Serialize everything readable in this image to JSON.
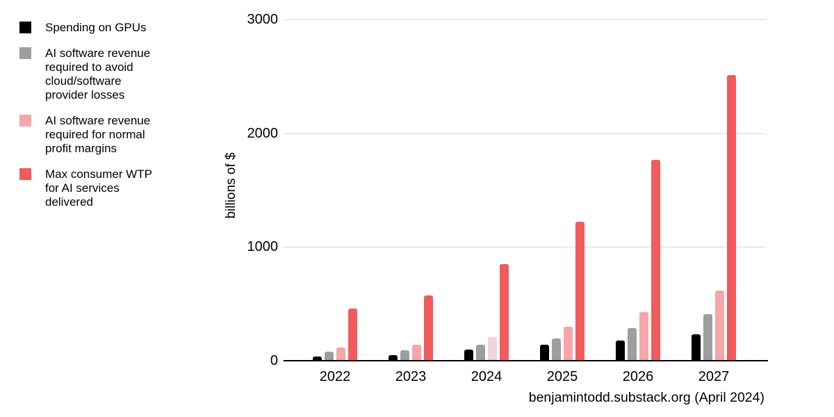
{
  "legend": {
    "items": [
      {
        "label": "Spending on GPUs",
        "color": "#000000"
      },
      {
        "label": "AI software revenue\nrequired to avoid\ncloud/software\nprovider losses",
        "color": "#9e9e9e"
      },
      {
        "label": "AI software revenue\nrequired for normal\nprofit margins",
        "color": "#f6a6a8"
      },
      {
        "label": "Max consumer WTP\nfor AI services\ndelivered",
        "color": "#f25b5c"
      }
    ]
  },
  "chart_data": {
    "type": "bar",
    "title": "",
    "xlabel": "",
    "ylabel": "billions of $",
    "caption": "benjamintodd.substack.org (April 2024)",
    "categories": [
      "2022",
      "2023",
      "2024",
      "2025",
      "2026",
      "2027"
    ],
    "series": [
      {
        "name": "Spending on GPUs",
        "color": "#000000",
        "values": [
          35,
          50,
          100,
          140,
          180,
          235
        ]
      },
      {
        "name": "AI software revenue required to avoid cloud/software provider losses",
        "color": "#9e9e9e",
        "values": [
          78,
          95,
          138,
          198,
          290,
          410
        ]
      },
      {
        "name": "AI software revenue required for normal profit margins",
        "color": "#f6a6a8",
        "values": [
          118,
          138,
          205,
          300,
          430,
          620
        ],
        "color_overrides": {
          "2024": "#edd4db"
        }
      },
      {
        "name": "Max consumer WTP for AI services delivered",
        "color": "#f25b5c",
        "values": [
          460,
          575,
          850,
          1225,
          1765,
          2510
        ]
      }
    ],
    "ylim": [
      0,
      3000
    ],
    "yticks": [
      0,
      1000,
      2000,
      3000
    ],
    "ytick_labels": [
      "0",
      "1000",
      "2000",
      "3000"
    ],
    "grid": true,
    "legend_position": "left",
    "colors": {
      "gridline": "#d6d6d6",
      "axis": "#000000",
      "pale_pink_2024": "#edd4db"
    }
  }
}
